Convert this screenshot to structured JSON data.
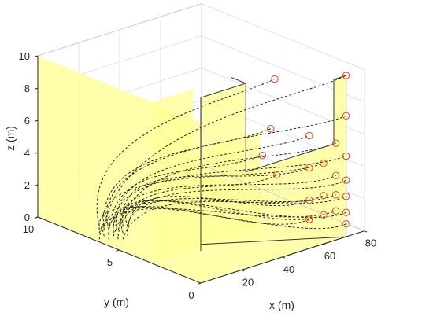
{
  "chart_data": {
    "type": "scatter3d",
    "title": "",
    "xlabel": "x (m)",
    "ylabel": "y (m)",
    "zlabel": "z (m)",
    "xlim": [
      0,
      80
    ],
    "ylim": [
      0,
      10
    ],
    "zlim": [
      0,
      10
    ],
    "xticks": [
      "20",
      "40",
      "60",
      "80"
    ],
    "yticks": [
      "0",
      "5",
      "10"
    ],
    "zticks": [
      "0",
      "2",
      "4",
      "6",
      "8",
      "10"
    ],
    "grid": true,
    "colors": {
      "surface_fill": "#ffff99",
      "target_marker": "#e8552a",
      "trajectory": "#222222",
      "frame": "#333333"
    },
    "targets": [
      {
        "x": 60,
        "y": 3,
        "z": 9
      },
      {
        "x": 58,
        "y": 3,
        "z": 6
      },
      {
        "x": 54,
        "y": 3,
        "z": 4.5
      },
      {
        "x": 61,
        "y": 3,
        "z": 3
      },
      {
        "x": 53,
        "y": 0,
        "z": 7
      },
      {
        "x": 53,
        "y": 0,
        "z": 5
      },
      {
        "x": 53,
        "y": 0,
        "z": 3
      },
      {
        "x": 53,
        "y": 0,
        "z": 1.8
      },
      {
        "x": 60,
        "y": 0,
        "z": 5
      },
      {
        "x": 60,
        "y": 0,
        "z": 3
      },
      {
        "x": 60,
        "y": 0,
        "z": 1.8
      },
      {
        "x": 66,
        "y": 0,
        "z": 6
      },
      {
        "x": 66,
        "y": 0,
        "z": 4
      },
      {
        "x": 66,
        "y": 0,
        "z": 2.8
      },
      {
        "x": 66,
        "y": 0,
        "z": 1.8
      },
      {
        "x": 71,
        "y": 0,
        "z": 10
      },
      {
        "x": 71,
        "y": 0,
        "z": 7.5
      },
      {
        "x": 71,
        "y": 0,
        "z": 5
      },
      {
        "x": 71,
        "y": 0,
        "z": 3.5
      },
      {
        "x": 71,
        "y": 0,
        "z": 2.5
      },
      {
        "x": 71,
        "y": 0,
        "z": 1.5
      },
      {
        "x": 71,
        "y": 0,
        "z": 0.8
      }
    ]
  }
}
